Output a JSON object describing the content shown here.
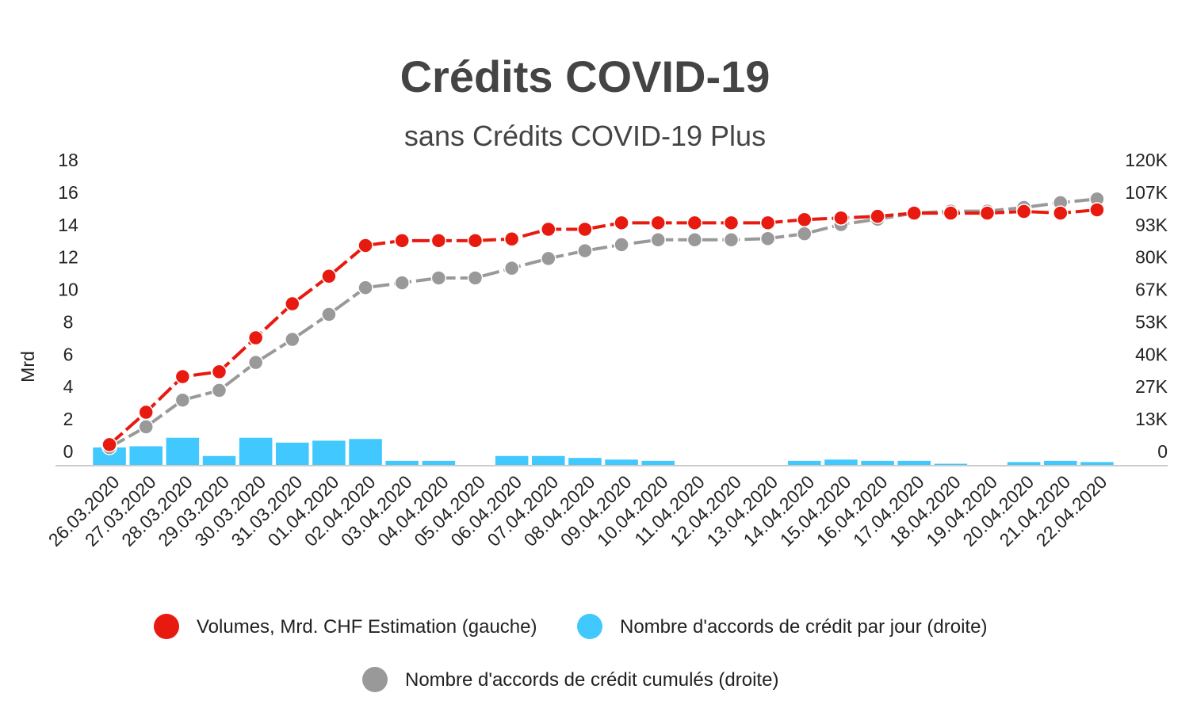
{
  "chart_data": {
    "type": "bar",
    "title": "Crédits COVID-19",
    "subtitle": "sans Crédits COVID-19 Plus",
    "ylabel_left": "Mrd",
    "ylim_left": [
      0,
      18
    ],
    "yticks_left": [
      "0",
      "2",
      "4",
      "6",
      "8",
      "10",
      "12",
      "14",
      "16",
      "18"
    ],
    "ylim_right": [
      0,
      120000
    ],
    "yticks_right": [
      "0",
      "13K",
      "27K",
      "40K",
      "53K",
      "67K",
      "80K",
      "93K",
      "107K",
      "120K"
    ],
    "categories": [
      "26.03.2020",
      "27.03.2020",
      "28.03.2020",
      "29.03.2020",
      "30.03.2020",
      "31.03.2020",
      "01.04.2020",
      "02.04.2020",
      "03.04.2020",
      "04.04.2020",
      "05.04.2020",
      "06.04.2020",
      "07.04.2020",
      "08.04.2020",
      "09.04.2020",
      "10.04.2020",
      "11.04.2020",
      "12.04.2020",
      "13.04.2020",
      "14.04.2020",
      "15.04.2020",
      "16.04.2020",
      "17.04.2020",
      "18.04.2020",
      "19.04.2020",
      "20.04.2020",
      "21.04.2020",
      "22.04.2020"
    ],
    "series": [
      {
        "name": "Volumes, Mrd. CHF Estimation (gauche)",
        "type": "line",
        "axis": "left",
        "color": "#e8190e",
        "values": [
          1.3,
          3.3,
          5.5,
          5.8,
          7.9,
          10.0,
          11.7,
          13.6,
          13.9,
          13.9,
          13.9,
          14.0,
          14.6,
          14.6,
          15.0,
          15.0,
          15.0,
          15.0,
          15.0,
          15.2,
          15.3,
          15.4,
          15.6,
          15.6,
          15.6,
          15.7,
          15.6,
          15.8
        ]
      },
      {
        "name": "Nombre d'accords de crédit par jour (droite)",
        "type": "bar",
        "axis": "right",
        "color": "#40c8ff",
        "values": [
          7500,
          8000,
          11500,
          4000,
          11500,
          9500,
          10300,
          11000,
          2000,
          2000,
          0,
          4000,
          4000,
          3200,
          2500,
          2000,
          0,
          0,
          0,
          2000,
          2500,
          2000,
          2000,
          800,
          0,
          1500,
          2000,
          1500
        ]
      },
      {
        "name": "Nombre d'accords de crédit cumulés (droite)",
        "type": "line",
        "axis": "right",
        "color": "#999999",
        "values": [
          7500,
          16000,
          27000,
          31000,
          42500,
          52000,
          62300,
          73300,
          75300,
          77300,
          77300,
          81300,
          85300,
          88500,
          91000,
          93000,
          93000,
          93000,
          93500,
          95500,
          99300,
          101500,
          104000,
          104800,
          104800,
          106300,
          108300,
          109800
        ]
      }
    ],
    "legend": {
      "position": "bottom",
      "items": [
        {
          "label": "Volumes, Mrd. CHF Estimation (gauche)",
          "color": "#e8190e"
        },
        {
          "label": "Nombre d'accords de crédit par jour (droite)",
          "color": "#40c8ff"
        },
        {
          "label": "Nombre d'accords de crédit cumulés (droite)",
          "color": "#999999"
        }
      ]
    },
    "grid": false
  }
}
